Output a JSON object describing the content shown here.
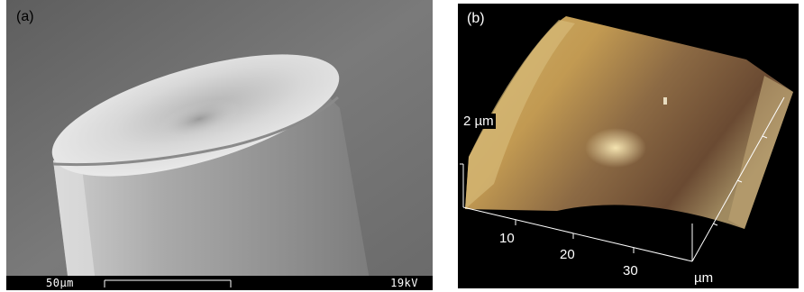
{
  "panels": {
    "a": {
      "label": "(a)",
      "scale_bar_text": "50µm",
      "voltage_text": "19kV"
    },
    "b": {
      "label": "(b)",
      "z_label": "2 µm",
      "x_ticks": [
        "10",
        "20",
        "30"
      ],
      "unit_label": "µm"
    }
  },
  "colors": {
    "afm_surface_light": "#c8a45a",
    "afm_surface_dark": "#6a4a32",
    "sem_background": "#707070"
  }
}
